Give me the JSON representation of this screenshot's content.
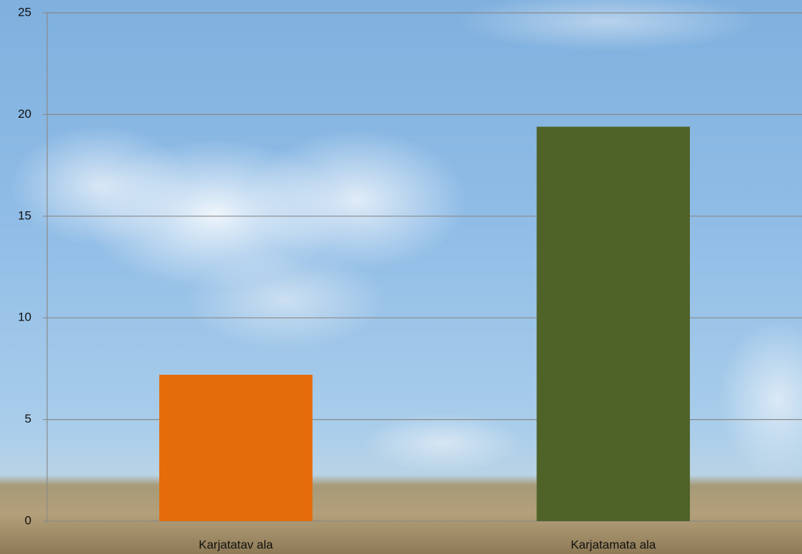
{
  "chart_data": {
    "type": "bar",
    "categories": [
      "Karjatatav ala",
      "Karjatamata ala"
    ],
    "values": [
      7.2,
      19.4
    ],
    "colors": [
      "#e46c0a",
      "#4f6228"
    ],
    "ylim": [
      0,
      25
    ],
    "yticks": [
      0,
      5,
      10,
      15,
      20,
      25
    ],
    "grid": true
  }
}
